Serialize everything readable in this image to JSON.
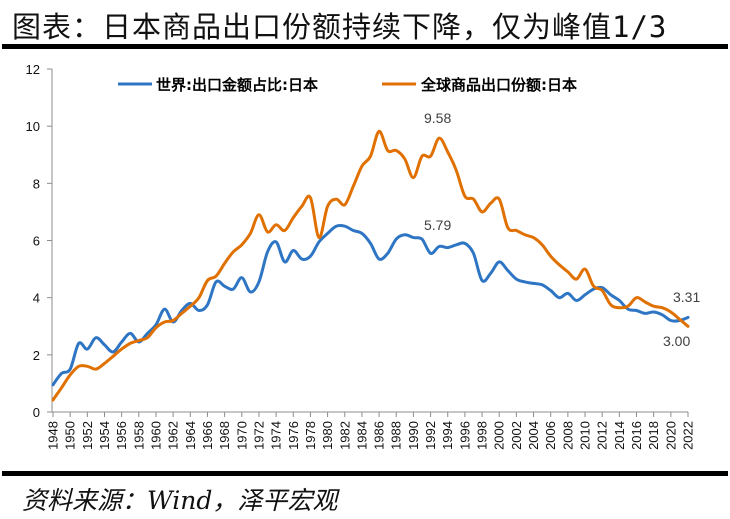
{
  "header": {
    "title": "图表：日本商品出口份额持续下降，仅为峰值1/3"
  },
  "footer": {
    "source": "资料来源：Wind，泽平宏观"
  },
  "chart_data": {
    "type": "line",
    "title": "图表：日本商品出口份额持续下降，仅为峰值1/3",
    "xlabel": "",
    "ylabel": "",
    "ylim": [
      0,
      12
    ],
    "yticks": [
      0,
      2,
      4,
      6,
      8,
      10,
      12
    ],
    "xlim": [
      1948,
      2022
    ],
    "xtick_labels": [
      "1948",
      "1950",
      "1952",
      "1954",
      "1956",
      "1958",
      "1960",
      "1962",
      "1964",
      "1966",
      "1968",
      "1970",
      "1972",
      "1974",
      "1976",
      "1978",
      "1980",
      "1982",
      "1984",
      "1986",
      "1988",
      "1990",
      "1992",
      "1994",
      "1996",
      "1998",
      "2000",
      "2002",
      "2004",
      "2006",
      "2008",
      "2010",
      "2012",
      "2014",
      "2016",
      "2018",
      "2020",
      "2022"
    ],
    "grid": false,
    "legend_position": "top",
    "x": [
      1948,
      1949,
      1950,
      1951,
      1952,
      1953,
      1954,
      1955,
      1956,
      1957,
      1958,
      1959,
      1960,
      1961,
      1962,
      1963,
      1964,
      1965,
      1966,
      1967,
      1968,
      1969,
      1970,
      1971,
      1972,
      1973,
      1974,
      1975,
      1976,
      1977,
      1978,
      1979,
      1980,
      1981,
      1982,
      1983,
      1984,
      1985,
      1986,
      1987,
      1988,
      1989,
      1990,
      1991,
      1992,
      1993,
      1994,
      1995,
      1996,
      1997,
      1998,
      1999,
      2000,
      2001,
      2002,
      2003,
      2004,
      2005,
      2006,
      2007,
      2008,
      2009,
      2010,
      2011,
      2012,
      2013,
      2014,
      2015,
      2016,
      2017,
      2018,
      2019,
      2020,
      2021,
      2022
    ],
    "series": [
      {
        "name": "世界:出口金额占比:日本",
        "color": "#2E75C4",
        "values": [
          0.95,
          1.35,
          1.5,
          2.4,
          2.2,
          2.6,
          2.35,
          2.1,
          2.45,
          2.75,
          2.45,
          2.75,
          3.05,
          3.6,
          3.15,
          3.55,
          3.8,
          3.55,
          3.75,
          4.55,
          4.4,
          4.3,
          4.7,
          4.2,
          4.55,
          5.6,
          5.95,
          5.25,
          5.65,
          5.35,
          5.45,
          5.95,
          6.25,
          6.5,
          6.5,
          6.35,
          6.25,
          5.9,
          5.35,
          5.55,
          6.05,
          6.2,
          6.1,
          6.05,
          5.55,
          5.79,
          5.75,
          5.85,
          5.9,
          5.55,
          4.6,
          4.85,
          5.25,
          4.95,
          4.65,
          4.55,
          4.5,
          4.45,
          4.25,
          4.0,
          4.15,
          3.9,
          4.1,
          4.3,
          4.35,
          4.1,
          3.9,
          3.6,
          3.55,
          3.45,
          3.5,
          3.4,
          3.2,
          3.2,
          3.31
        ]
      },
      {
        "name": "全球商品出口份额:日本",
        "color": "#E07000",
        "values": [
          0.42,
          0.85,
          1.3,
          1.6,
          1.6,
          1.5,
          1.7,
          1.95,
          2.2,
          2.4,
          2.5,
          2.6,
          2.95,
          3.15,
          3.2,
          3.45,
          3.7,
          4.0,
          4.6,
          4.75,
          5.2,
          5.6,
          5.85,
          6.25,
          6.9,
          6.3,
          6.55,
          6.35,
          6.8,
          7.2,
          7.5,
          6.1,
          7.2,
          7.45,
          7.25,
          7.9,
          8.6,
          8.95,
          9.82,
          9.15,
          9.15,
          8.85,
          8.2,
          8.95,
          8.95,
          9.58,
          9.1,
          8.45,
          7.55,
          7.45,
          7.0,
          7.3,
          7.45,
          6.45,
          6.35,
          6.2,
          6.1,
          5.85,
          5.45,
          5.15,
          4.9,
          4.65,
          5.0,
          4.4,
          4.25,
          3.75,
          3.65,
          3.7,
          4.0,
          3.85,
          3.7,
          3.65,
          3.5,
          3.25,
          3.0
        ]
      }
    ],
    "annotations": [
      {
        "text": "9.58",
        "series": 1,
        "x": 1993
      },
      {
        "text": "5.79",
        "series": 0,
        "x": 1993
      },
      {
        "text": "3.31",
        "series": 0,
        "x": 2022
      },
      {
        "text": "3.00",
        "series": 1,
        "x": 2022
      }
    ]
  }
}
